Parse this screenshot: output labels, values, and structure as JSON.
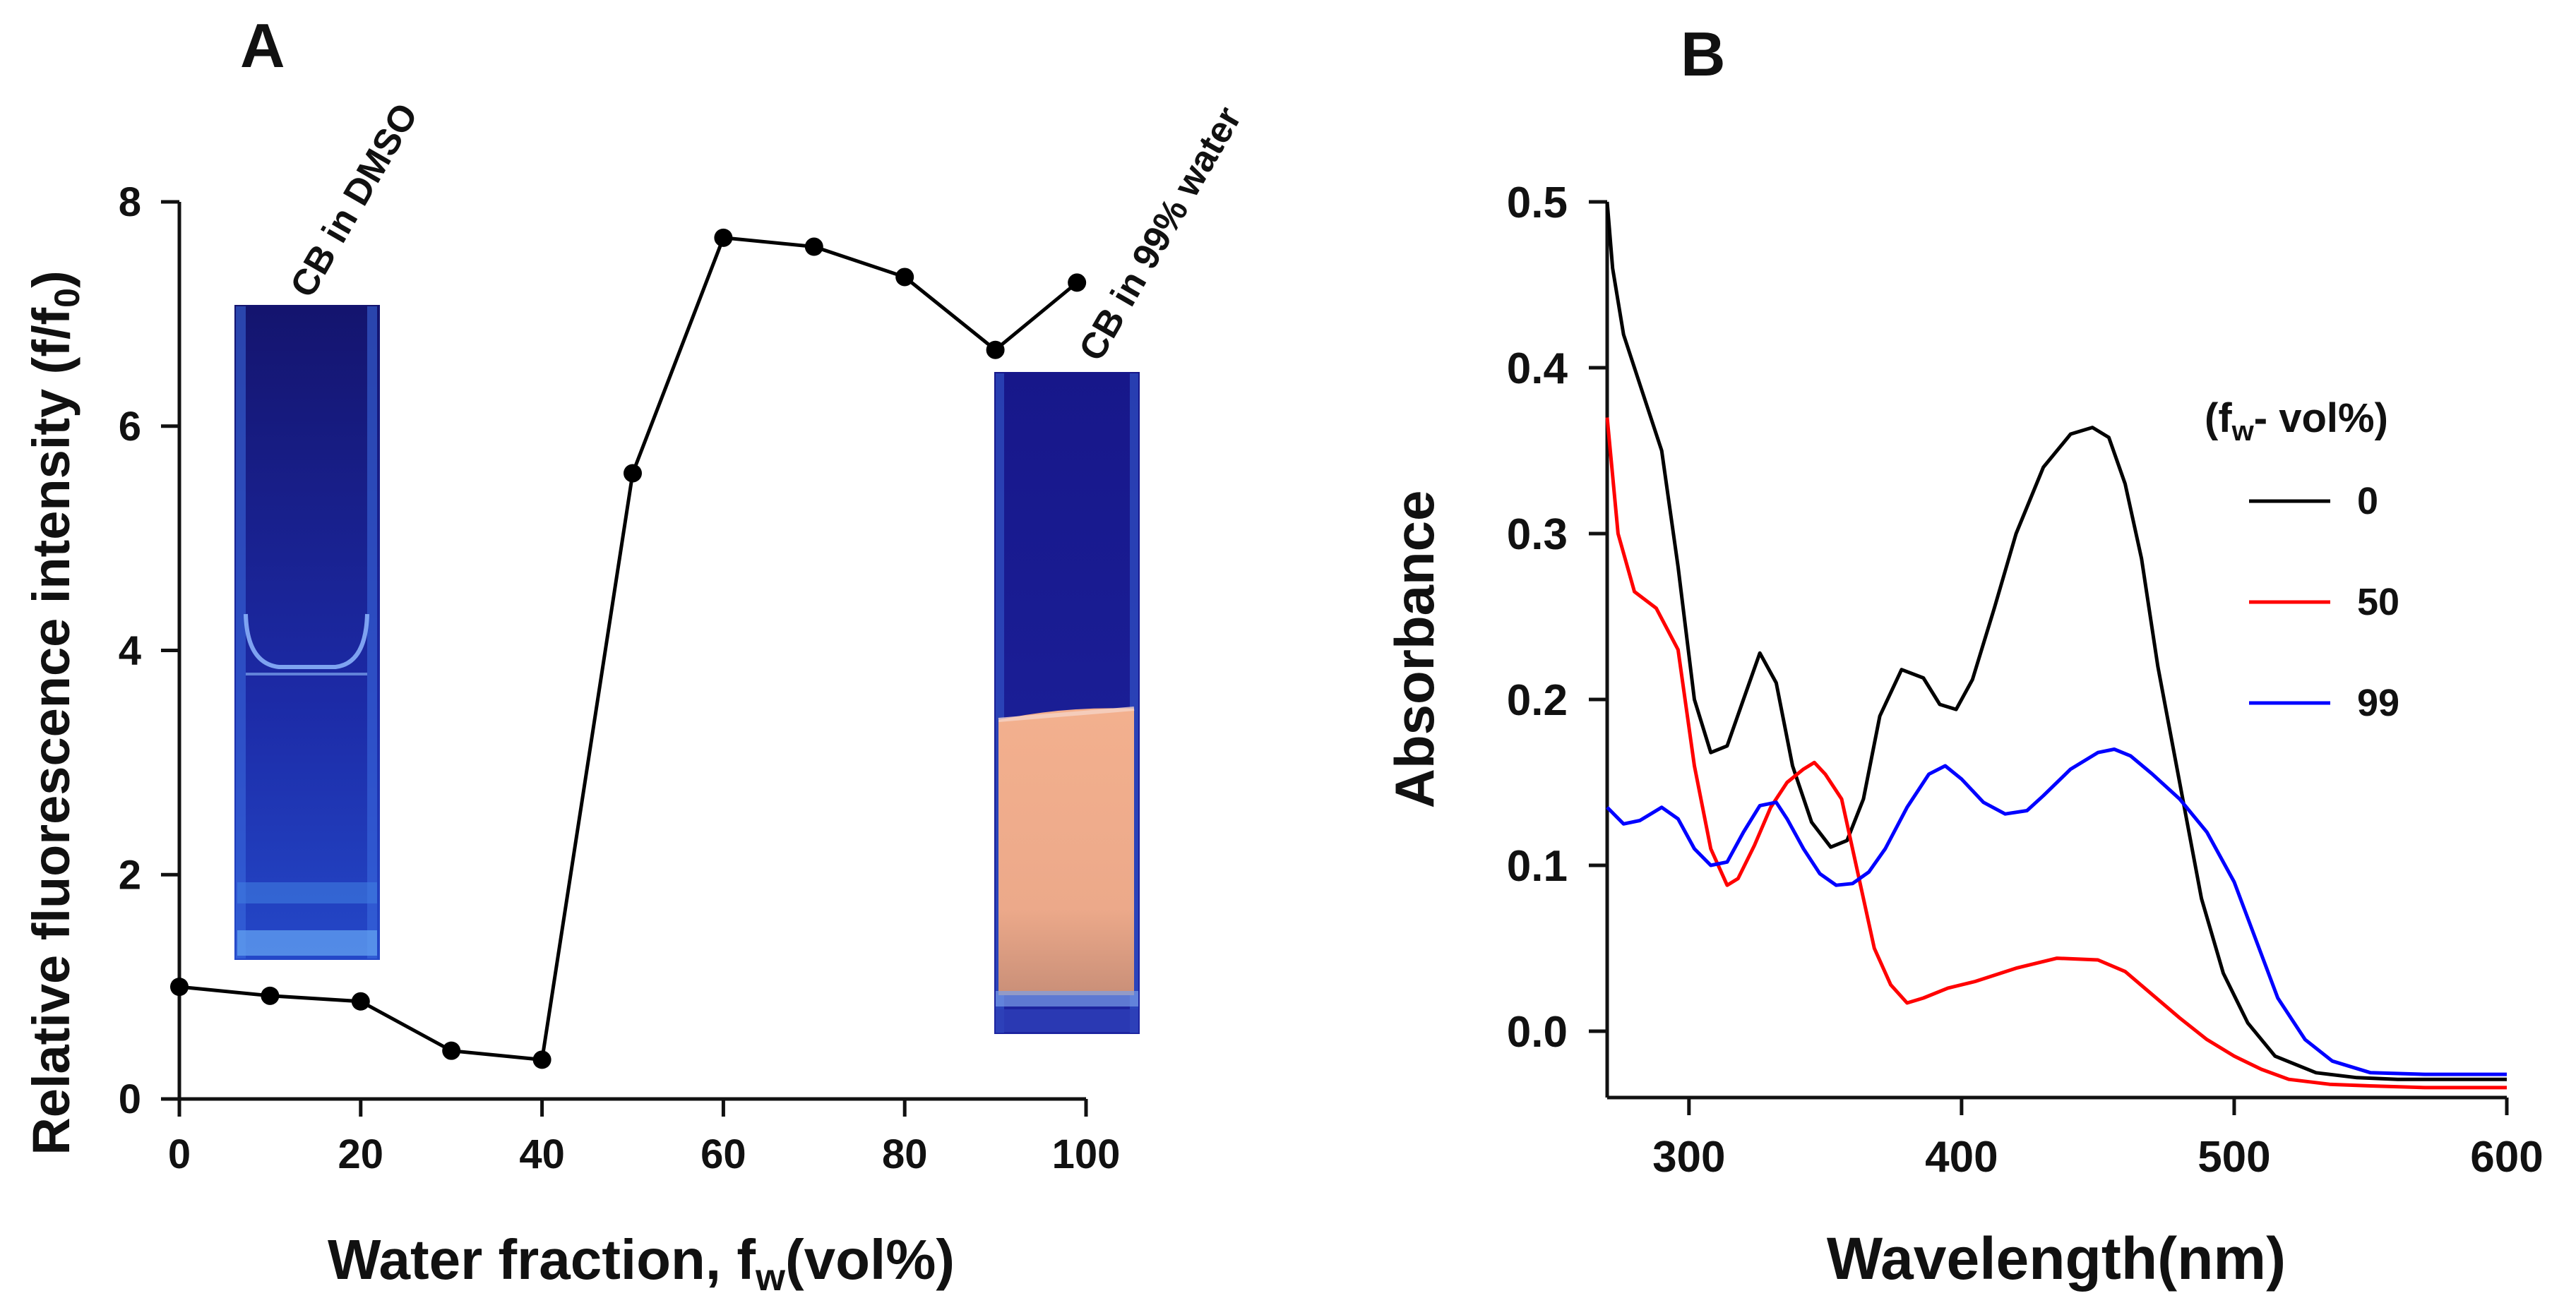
{
  "chart_data": [
    {
      "panel": "A",
      "type": "line",
      "xlabel": "Water fraction, f",
      "xlabel_sub": "w",
      "xlabel_tail": "(vol%)",
      "ylabel": "Relative fluorescence intensity (f/f",
      "ylabel_sub": "0",
      "ylabel_tail": ")",
      "xlim": [
        0,
        100
      ],
      "ylim": [
        0,
        8
      ],
      "xticks": [
        0,
        20,
        40,
        60,
        80,
        100
      ],
      "yticks": [
        0,
        2,
        4,
        6,
        8
      ],
      "series": [
        {
          "name": "CB",
          "color": "#000000",
          "x": [
            0,
            10,
            20,
            30,
            40,
            50,
            60,
            70,
            80,
            90,
            99
          ],
          "y": [
            1.0,
            0.92,
            0.87,
            0.43,
            0.35,
            5.58,
            7.68,
            7.6,
            7.33,
            6.68,
            7.28
          ]
        }
      ],
      "annotations": [
        "CB in DMSO",
        "CB in 99% water"
      ]
    },
    {
      "panel": "B",
      "type": "line",
      "xlabel": "Wavelength(nm)",
      "ylabel": "Absorbance",
      "xlim": [
        270,
        600
      ],
      "ylim": [
        -0.04,
        0.5
      ],
      "xticks": [
        300,
        400,
        500,
        600
      ],
      "yticks": [
        0.0,
        0.1,
        0.2,
        0.3,
        0.4,
        0.5
      ],
      "legend_title": "(f",
      "legend_title_sub": "w",
      "legend_title_tail": "- vol%)",
      "legend_position": "right",
      "series": [
        {
          "name": "0",
          "color": "#000000",
          "x": [
            270,
            272,
            276,
            282,
            290,
            296,
            302,
            308,
            314,
            320,
            326,
            332,
            338,
            345,
            352,
            358,
            364,
            370,
            378,
            386,
            392,
            398,
            404,
            412,
            420,
            430,
            440,
            448,
            454,
            460,
            466,
            472,
            480,
            488,
            496,
            505,
            515,
            530,
            545,
            560,
            580,
            600
          ],
          "y": [
            0.5,
            0.46,
            0.42,
            0.39,
            0.35,
            0.28,
            0.2,
            0.168,
            0.172,
            0.2,
            0.228,
            0.21,
            0.16,
            0.126,
            0.111,
            0.115,
            0.14,
            0.19,
            0.218,
            0.213,
            0.197,
            0.194,
            0.212,
            0.255,
            0.3,
            0.34,
            0.36,
            0.364,
            0.358,
            0.33,
            0.285,
            0.22,
            0.15,
            0.08,
            0.035,
            0.005,
            -0.015,
            -0.025,
            -0.028,
            -0.029,
            -0.029,
            -0.029
          ]
        },
        {
          "name": "50",
          "color": "#ff0000",
          "x": [
            270,
            274,
            280,
            288,
            296,
            302,
            308,
            314,
            318,
            324,
            330,
            336,
            342,
            346,
            350,
            356,
            362,
            368,
            374,
            380,
            386,
            395,
            405,
            420,
            435,
            450,
            460,
            470,
            480,
            490,
            500,
            510,
            520,
            535,
            550,
            570,
            600
          ],
          "y": [
            0.37,
            0.3,
            0.265,
            0.255,
            0.23,
            0.16,
            0.11,
            0.088,
            0.092,
            0.112,
            0.135,
            0.15,
            0.158,
            0.162,
            0.155,
            0.14,
            0.095,
            0.05,
            0.028,
            0.017,
            0.02,
            0.026,
            0.03,
            0.038,
            0.044,
            0.043,
            0.036,
            0.022,
            0.008,
            -0.005,
            -0.015,
            -0.023,
            -0.029,
            -0.032,
            -0.033,
            -0.034,
            -0.034
          ]
        },
        {
          "name": "99",
          "color": "#0000ff",
          "x": [
            270,
            276,
            282,
            290,
            296,
            302,
            308,
            314,
            320,
            326,
            332,
            336,
            342,
            348,
            354,
            360,
            366,
            372,
            380,
            388,
            394,
            400,
            408,
            416,
            424,
            430,
            440,
            450,
            456,
            462,
            470,
            480,
            490,
            500,
            508,
            516,
            526,
            536,
            550,
            570,
            600
          ],
          "y": [
            0.135,
            0.125,
            0.127,
            0.135,
            0.128,
            0.11,
            0.1,
            0.102,
            0.12,
            0.136,
            0.138,
            0.128,
            0.11,
            0.095,
            0.088,
            0.089,
            0.096,
            0.11,
            0.135,
            0.155,
            0.16,
            0.152,
            0.138,
            0.131,
            0.133,
            0.142,
            0.158,
            0.168,
            0.17,
            0.166,
            0.155,
            0.14,
            0.12,
            0.09,
            0.055,
            0.02,
            -0.005,
            -0.018,
            -0.025,
            -0.026,
            -0.026
          ]
        }
      ]
    }
  ]
}
